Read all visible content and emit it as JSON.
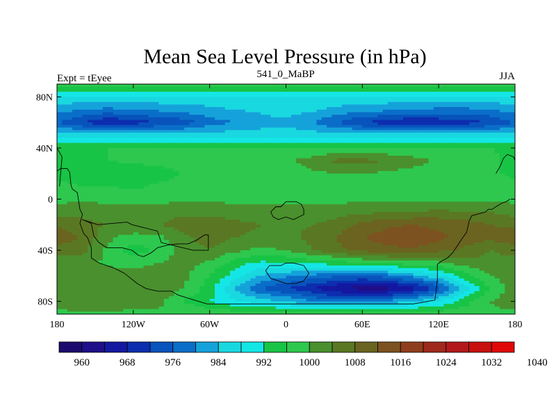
{
  "chart_data": {
    "type": "heatmap",
    "title": "Mean Sea Level Pressure (in hPa)",
    "subtitle_left": "Expt = tEyee",
    "subtitle_center": "541_0_MaBP",
    "subtitle_right": "JJA",
    "x_range": [
      -180,
      180
    ],
    "y_range": [
      -90,
      90
    ],
    "x_ticks": [
      {
        "value": -180,
        "label": "180"
      },
      {
        "value": -120,
        "label": "120W"
      },
      {
        "value": -60,
        "label": "60W"
      },
      {
        "value": 0,
        "label": "0"
      },
      {
        "value": 60,
        "label": "60E"
      },
      {
        "value": 120,
        "label": "120E"
      },
      {
        "value": 180,
        "label": "180"
      }
    ],
    "y_ticks": [
      {
        "value": 80,
        "label": "80N"
      },
      {
        "value": 40,
        "label": "40N"
      },
      {
        "value": 0,
        "label": "0"
      },
      {
        "value": -40,
        "label": "40S"
      },
      {
        "value": -80,
        "label": "80S"
      }
    ],
    "colorbar": {
      "levels_start": 956,
      "level_step": 4,
      "colors": [
        "#1c0b6e",
        "#1f0f88",
        "#1418a0",
        "#0c2eae",
        "#0853bc",
        "#0a6ec8",
        "#15a2da",
        "#19d8df",
        "#14e6e6",
        "#18c446",
        "#2ec84e",
        "#4a902e",
        "#5a7824",
        "#6a6420",
        "#7c5220",
        "#8e3e1c",
        "#a0281c",
        "#b2181a",
        "#c8100e",
        "#e00808"
      ],
      "labels": [
        {
          "value": 960,
          "label": "960"
        },
        {
          "value": 968,
          "label": "968"
        },
        {
          "value": 976,
          "label": "976"
        },
        {
          "value": 984,
          "label": "984"
        },
        {
          "value": 992,
          "label": "992"
        },
        {
          "value": 1000,
          "label": "1000"
        },
        {
          "value": 1008,
          "label": "1008"
        },
        {
          "value": 1016,
          "label": "1016"
        },
        {
          "value": 1024,
          "label": "1024"
        },
        {
          "value": 1032,
          "label": "1032"
        },
        {
          "value": 1040,
          "label": "1040"
        }
      ]
    },
    "field": {
      "lon_step": 20,
      "lat_step": 10,
      "lons": [
        -180,
        -160,
        -140,
        -120,
        -100,
        -80,
        -60,
        -40,
        -20,
        0,
        20,
        40,
        60,
        80,
        100,
        120,
        140,
        160,
        180
      ],
      "lats": [
        90,
        80,
        70,
        60,
        50,
        40,
        30,
        20,
        10,
        0,
        -10,
        -20,
        -30,
        -40,
        -50,
        -60,
        -70,
        -80,
        -90
      ],
      "values": [
        [
          999,
          999,
          999,
          999,
          999,
          999,
          999,
          999,
          999,
          999,
          999,
          999,
          999,
          999,
          999,
          999,
          999,
          999,
          999
        ],
        [
          987,
          987,
          987,
          987,
          987,
          987,
          987,
          987,
          987,
          987,
          987,
          987,
          987,
          987,
          987,
          987,
          987,
          987,
          987
        ],
        [
          982,
          980,
          979,
          980,
          981,
          982,
          983,
          984,
          985,
          986,
          985,
          983,
          982,
          981,
          980,
          979,
          979,
          980,
          982
        ],
        [
          976,
          972,
          968,
          970,
          972,
          974,
          978,
          980,
          982,
          983,
          980,
          976,
          972,
          969,
          968,
          969,
          970,
          972,
          976
        ],
        [
          986,
          986,
          986,
          986,
          986,
          986,
          986,
          986,
          986,
          986,
          986,
          986,
          986,
          986,
          986,
          986,
          986,
          986,
          986
        ],
        [
          995,
          996,
          996,
          996,
          996,
          996,
          996,
          996,
          996,
          996,
          996,
          996,
          996,
          996,
          996,
          996,
          996,
          996,
          995
        ],
        [
          993,
          995,
          996,
          997,
          998,
          999,
          999,
          999,
          998,
          999,
          1002,
          1005,
          1005,
          1004,
          1002,
          999,
          998,
          998,
          993
        ],
        [
          994,
          993,
          993,
          992,
          993,
          996,
          998,
          999,
          998,
          998,
          999,
          1000,
          1000,
          999,
          998,
          998,
          998,
          998,
          994
        ],
        [
          998,
          996,
          996,
          995,
          997,
          999,
          999,
          999,
          999,
          999,
          999,
          999,
          999,
          999,
          999,
          999,
          998,
          998,
          998
        ],
        [
          999,
          999,
          999,
          999,
          999,
          999,
          999,
          999,
          999,
          999,
          999,
          999,
          999,
          999,
          999,
          999,
          999,
          999,
          999
        ],
        [
          1002,
          1003,
          1002,
          1002,
          1002,
          1003,
          1003,
          1002,
          1002,
          1001,
          1001,
          1002,
          1003,
          1004,
          1004,
          1005,
          1004,
          1004,
          1002
        ],
        [
          1007,
          1005,
          1004,
          1004,
          1004,
          1006,
          1006,
          1005,
          1004,
          1003,
          1004,
          1006,
          1009,
          1011,
          1012,
          1011,
          1010,
          1008,
          1007
        ],
        [
          1012,
          1007,
          1001,
          998,
          999,
          1003,
          1006,
          1004,
          1003,
          1003,
          1005,
          1008,
          1012,
          1014,
          1015,
          1013,
          1011,
          1009,
          1012
        ],
        [
          1005,
          1005,
          999,
          994,
          997,
          1002,
          1004,
          1001,
          999,
          1000,
          1004,
          1007,
          1009,
          1011,
          1011,
          1009,
          1007,
          1004,
          1005
        ],
        [
          1003,
          1002,
          999,
          998,
          1000,
          1002,
          999,
          994,
          991,
          992,
          993,
          994,
          996,
          997,
          998,
          999,
          1002,
          1003,
          1003
        ],
        [
          1003,
          1003,
          1003,
          1003,
          1003,
          1001,
          996,
          990,
          984,
          981,
          979,
          977,
          976,
          978,
          982,
          987,
          994,
          1000,
          1003
        ],
        [
          1002,
          1003,
          1003,
          1003,
          1003,
          1000,
          994,
          984,
          976,
          972,
          968,
          964,
          962,
          962,
          966,
          974,
          986,
          996,
          1002
        ],
        [
          1002,
          1003,
          1003,
          1002,
          1001,
          996,
          992,
          988,
          986,
          984,
          980,
          978,
          979,
          981,
          984,
          988,
          994,
          1000,
          1002
        ],
        [
          999,
          999,
          999,
          999,
          999,
          999,
          999,
          999,
          999,
          999,
          999,
          999,
          999,
          999,
          999,
          999,
          999,
          999,
          999
        ]
      ]
    },
    "coastlines": [
      [
        [
          -180,
          22
        ],
        [
          -177,
          24
        ],
        [
          -172,
          24
        ],
        [
          -170,
          21
        ],
        [
          -169,
          11
        ],
        [
          -168,
          8
        ],
        [
          -164,
          5
        ],
        [
          -162,
          -8
        ],
        [
          -160,
          -12
        ],
        [
          -162,
          -19
        ],
        [
          -159,
          -27
        ],
        [
          -156,
          -30
        ],
        [
          -153,
          -38
        ],
        [
          -153,
          -46
        ],
        [
          -147,
          -50
        ],
        [
          -141,
          -52
        ],
        [
          -135,
          -54
        ],
        [
          -127,
          -58
        ],
        [
          -117,
          -66
        ],
        [
          -110,
          -70
        ],
        [
          -101,
          -72
        ],
        [
          -90,
          -72
        ],
        [
          -85,
          -75
        ],
        [
          -72,
          -79
        ],
        [
          -62,
          -82
        ],
        [
          -40,
          -82
        ],
        [
          -20,
          -82
        ],
        [
          20,
          -82
        ],
        [
          60,
          -82
        ],
        [
          100,
          -82
        ],
        [
          117,
          -79
        ],
        [
          118,
          -72
        ],
        [
          119,
          -63
        ],
        [
          119,
          -51
        ],
        [
          123,
          -48
        ],
        [
          127,
          -46
        ],
        [
          131,
          -42
        ],
        [
          135,
          -36
        ],
        [
          139,
          -30
        ],
        [
          142,
          -26
        ],
        [
          144,
          -17
        ],
        [
          146,
          -13
        ],
        [
          157,
          -10
        ],
        [
          159,
          -8
        ],
        [
          162,
          -8
        ],
        [
          165,
          -6
        ],
        [
          170,
          -3
        ],
        [
          173,
          -2
        ],
        [
          176,
          0
        ]
      ],
      [
        [
          -160,
          -16
        ],
        [
          -153,
          -19
        ],
        [
          -151,
          -29
        ],
        [
          -147,
          -34
        ],
        [
          -141,
          -38
        ],
        [
          -129,
          -38
        ],
        [
          -121,
          -40
        ],
        [
          -116,
          -44
        ],
        [
          -112,
          -45
        ],
        [
          -106,
          -42
        ],
        [
          -101,
          -38
        ],
        [
          -93,
          -36
        ],
        [
          -85,
          -35
        ],
        [
          -77,
          -35
        ],
        [
          -70,
          -32
        ],
        [
          -64,
          -28
        ],
        [
          -61,
          -28
        ],
        [
          -61,
          -40
        ],
        [
          -73,
          -40
        ],
        [
          -98,
          -34
        ],
        [
          -101,
          -25
        ],
        [
          -121,
          -20
        ],
        [
          -125,
          -18
        ],
        [
          -148,
          -20
        ],
        [
          -160,
          -16
        ]
      ],
      [
        [
          -16,
          -56
        ],
        [
          -13,
          -52
        ],
        [
          -4,
          -52
        ],
        [
          0,
          -50
        ],
        [
          6,
          -50
        ],
        [
          14,
          -52
        ],
        [
          18,
          -58
        ],
        [
          14,
          -64
        ],
        [
          8,
          -66
        ],
        [
          0,
          -66
        ],
        [
          -6,
          -64
        ],
        [
          -12,
          -62
        ],
        [
          -16,
          -56
        ]
      ],
      [
        [
          -12,
          -10
        ],
        [
          -8,
          -6
        ],
        [
          -4,
          -6
        ],
        [
          0,
          -2
        ],
        [
          8,
          -2
        ],
        [
          12,
          -4
        ],
        [
          14,
          -8
        ],
        [
          14,
          -12
        ],
        [
          6,
          -16
        ],
        [
          0,
          -14
        ],
        [
          -6,
          -16
        ],
        [
          -10,
          -14
        ],
        [
          -12,
          -10
        ]
      ],
      [
        [
          165,
          20
        ],
        [
          168,
          25
        ],
        [
          171,
          32
        ],
        [
          174,
          35
        ],
        [
          179,
          33
        ],
        [
          180,
          30
        ]
      ],
      [
        [
          -180,
          40
        ],
        [
          -176,
          33
        ],
        [
          -178,
          10
        ]
      ]
    ]
  }
}
